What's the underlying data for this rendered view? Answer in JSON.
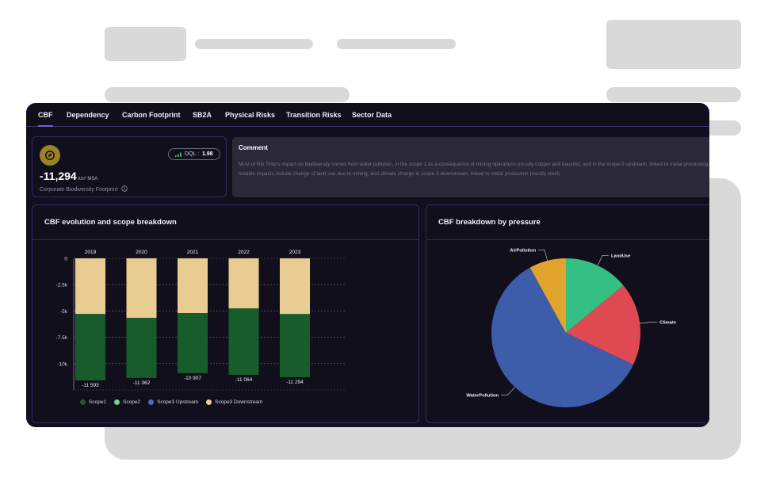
{
  "tabs": [
    "CBF",
    "Dependency",
    "Carbon Footprint",
    "SB2A",
    "Physical Risks",
    "Transition Risks",
    "Sector Data"
  ],
  "metric": {
    "icon": "biodiversity-icon",
    "dql_label": "DQL :",
    "dql_value": "1.98",
    "value": "-11,294",
    "unit": "km² MSA",
    "caption": "Corporate Biodiversity Footprint",
    "info_icon": "info-icon"
  },
  "comment": {
    "title": "Comment",
    "text": "Most of Rio Tinto's impact on biodiversity comes from water pollution, in the scope 1 as a consequence of mining operations (mostly copper and bauxite), and in the scope 3 upstream, linked to metal processing. Other notable impacts include change of land use due to mining, and climate change in scope 3 downstream, linked to metal production (mostly steel)."
  },
  "evolution_section": {
    "title": "CBF evolution and scope breakdown"
  },
  "pressure_section": {
    "title": "CBF breakdown by pressure"
  },
  "colors": {
    "scope1": "#185c2c",
    "scope2": "#67d98c",
    "scope3_upstream": "#4472c4",
    "scope3_downstream": "#e8cc92",
    "pie_water": "#3d5ca9",
    "pie_land": "#35bf83",
    "pie_climate": "#df4a52",
    "pie_air": "#e2a42c"
  },
  "chart_data": [
    {
      "type": "bar",
      "stacked": true,
      "title": "CBF evolution and scope breakdown",
      "categories": [
        "2019",
        "2020",
        "2021",
        "2022",
        "2023"
      ],
      "totals_labels": [
        "-11 593",
        "-11 362",
        "-10 907",
        "-11 064",
        "-11 294"
      ],
      "series": [
        {
          "name": "Scope1",
          "values": [
            -6300,
            -5700,
            -5700,
            -6300,
            -6000
          ]
        },
        {
          "name": "Scope2",
          "values": [
            0,
            0,
            0,
            0,
            0
          ]
        },
        {
          "name": "Scope3 Upstream",
          "values": [
            0,
            0,
            0,
            0,
            0
          ]
        },
        {
          "name": "Scope3 Downstream",
          "values": [
            -5293,
            -5662,
            -5207,
            -4764,
            -5294
          ]
        }
      ],
      "ylim": [
        -12500,
        0
      ],
      "yticks": [
        0,
        -2500,
        -5000,
        -7500,
        -10000
      ],
      "ytick_labels": [
        "0",
        "-2.5k",
        "-5k",
        "-7.5k",
        "-10k"
      ],
      "grid": true,
      "legend": "bottom"
    },
    {
      "type": "pie",
      "title": "CBF breakdown by pressure",
      "labels": [
        "LandUse",
        "Climate",
        "WaterPollution",
        "AirPollution"
      ],
      "values": [
        14,
        18,
        60,
        8
      ]
    }
  ]
}
